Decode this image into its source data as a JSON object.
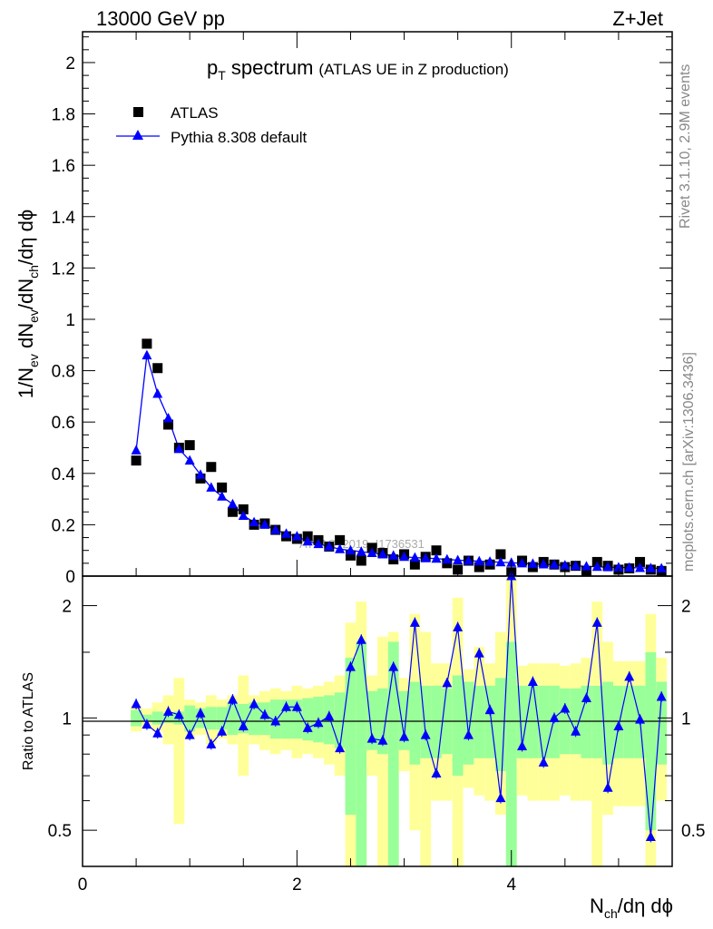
{
  "header": {
    "left": "13000 GeV pp",
    "right": "Z+Jet"
  },
  "side_labels": {
    "rivet": "Rivet 3.1.10,  2.9M events",
    "mcplots": "mcplots.cern.ch [arXiv:1306.3436]"
  },
  "chart_data": [
    {
      "type": "scatter",
      "panel": "main",
      "title_main": "p",
      "title_sub": "T",
      "title_rest": " spectrum",
      "title_note": "(ATLAS UE in Z production)",
      "ylabel": "1/N_ev dN_ev/dN_ch/dη dϕ",
      "ylim": [
        0,
        2.12
      ],
      "yticks": [
        "0",
        "0.2",
        "0.4",
        "0.6",
        "0.8",
        "1",
        "1.2",
        "1.4",
        "1.6",
        "1.8",
        "2"
      ],
      "xlim": [
        0,
        5.5
      ],
      "watermark": "ATLAS_2019_I1736531",
      "legend_position": "top-left",
      "x": [
        0.5,
        0.6,
        0.7,
        0.8,
        0.9,
        1.0,
        1.1,
        1.2,
        1.3,
        1.4,
        1.5,
        1.6,
        1.7,
        1.8,
        1.9,
        2.0,
        2.1,
        2.2,
        2.3,
        2.4,
        2.5,
        2.6,
        2.7,
        2.8,
        2.9,
        3.0,
        3.1,
        3.2,
        3.3,
        3.4,
        3.5,
        3.6,
        3.7,
        3.8,
        3.9,
        4.0,
        4.1,
        4.2,
        4.3,
        4.4,
        4.5,
        4.6,
        4.7,
        4.8,
        4.9,
        5.0,
        5.1,
        5.2,
        5.3,
        5.4
      ],
      "series": [
        {
          "name": "ATLAS",
          "color": "#000000",
          "marker": "square",
          "values": [
            0.45,
            0.905,
            0.81,
            0.59,
            0.5,
            0.51,
            0.38,
            0.425,
            0.345,
            0.25,
            0.26,
            0.2,
            0.205,
            0.18,
            0.155,
            0.145,
            0.155,
            0.14,
            0.115,
            0.14,
            0.08,
            0.06,
            0.11,
            0.09,
            0.065,
            0.085,
            0.045,
            0.075,
            0.1,
            0.05,
            0.025,
            0.06,
            0.035,
            0.045,
            0.085,
            0.015,
            0.06,
            0.035,
            0.055,
            0.045,
            0.035,
            0.04,
            0.02,
            0.055,
            0.04,
            0.025,
            0.03,
            0.055,
            0.025,
            0.02
          ]
        },
        {
          "name": "Pythia 8.308 default",
          "color": "#0000ff",
          "marker": "triangle",
          "values": [
            0.49,
            0.86,
            0.71,
            0.615,
            0.495,
            0.45,
            0.395,
            0.345,
            0.31,
            0.28,
            0.235,
            0.21,
            0.2,
            0.18,
            0.165,
            0.155,
            0.135,
            0.125,
            0.115,
            0.105,
            0.1,
            0.095,
            0.09,
            0.085,
            0.08,
            0.075,
            0.072,
            0.07,
            0.068,
            0.065,
            0.062,
            0.06,
            0.058,
            0.056,
            0.054,
            0.052,
            0.05,
            0.048,
            0.046,
            0.044,
            0.042,
            0.04,
            0.038,
            0.036,
            0.035,
            0.034,
            0.033,
            0.032,
            0.031,
            0.03
          ]
        }
      ]
    },
    {
      "type": "line",
      "panel": "ratio",
      "ylabel": "Ratio to ATLAS",
      "ylim": [
        0.4,
        2.4
      ],
      "yticks": [
        "0.5",
        "1",
        "2"
      ],
      "xlim": [
        0,
        5.5
      ],
      "xticks": [
        "0",
        "2",
        "4"
      ],
      "xlabel": "N_ch/dη dϕ",
      "x": [
        0.5,
        0.6,
        0.7,
        0.8,
        0.9,
        1.0,
        1.1,
        1.2,
        1.3,
        1.4,
        1.5,
        1.6,
        1.7,
        1.8,
        1.9,
        2.0,
        2.1,
        2.2,
        2.3,
        2.4,
        2.5,
        2.6,
        2.7,
        2.8,
        2.9,
        3.0,
        3.1,
        3.2,
        3.3,
        3.4,
        3.5,
        3.6,
        3.7,
        3.8,
        3.9,
        4.0,
        4.1,
        4.2,
        4.3,
        4.4,
        4.5,
        4.6,
        4.7,
        4.8,
        4.9,
        5.0,
        5.1,
        5.2,
        5.3,
        5.4
      ],
      "ratio": [
        1.09,
        0.96,
        0.91,
        1.04,
        1.02,
        0.9,
        1.03,
        0.85,
        0.92,
        1.12,
        0.95,
        1.09,
        1.02,
        0.98,
        1.07,
        1.07,
        0.94,
        0.97,
        1.01,
        0.83,
        1.37,
        1.62,
        0.88,
        0.87,
        1.37,
        0.89,
        1.8,
        0.9,
        0.71,
        1.24,
        1.75,
        0.9,
        1.49,
        1.05,
        0.61,
        2.4,
        0.84,
        1.25,
        0.76,
        1.0,
        1.06,
        0.92,
        1.13,
        1.8,
        0.65,
        0.95,
        1.29,
        0.99,
        0.48,
        1.14
      ],
      "band_stat_lo": [
        0.95,
        0.98,
        0.96,
        0.97,
        0.96,
        0.92,
        0.94,
        0.93,
        0.93,
        0.9,
        0.91,
        0.9,
        0.9,
        0.88,
        0.88,
        0.88,
        0.87,
        0.86,
        0.85,
        0.83,
        0.55,
        0.4,
        0.82,
        0.8,
        0.4,
        0.82,
        0.75,
        0.78,
        0.78,
        0.8,
        0.7,
        0.75,
        0.78,
        0.78,
        0.72,
        0.4,
        0.78,
        0.78,
        0.78,
        0.78,
        0.8,
        0.8,
        0.78,
        0.78,
        0.75,
        0.78,
        0.78,
        0.78,
        0.5,
        0.75
      ],
      "band_stat_hi": [
        1.05,
        1.02,
        1.04,
        1.03,
        1.04,
        1.08,
        1.06,
        1.07,
        1.07,
        1.1,
        1.09,
        1.1,
        1.1,
        1.12,
        1.12,
        1.12,
        1.13,
        1.14,
        1.15,
        1.17,
        1.45,
        1.6,
        1.18,
        1.2,
        1.6,
        1.18,
        1.25,
        1.22,
        1.22,
        1.2,
        1.3,
        1.25,
        1.22,
        1.22,
        1.28,
        1.6,
        1.22,
        1.22,
        1.22,
        1.22,
        1.2,
        1.2,
        1.22,
        1.22,
        1.25,
        1.22,
        1.22,
        1.22,
        1.5,
        1.25
      ],
      "band_sys_lo": [
        0.92,
        0.94,
        0.92,
        0.85,
        0.52,
        0.88,
        0.9,
        0.85,
        0.88,
        0.85,
        0.7,
        0.85,
        0.82,
        0.8,
        0.82,
        0.78,
        0.8,
        0.78,
        0.75,
        0.7,
        0.4,
        0.4,
        0.7,
        0.4,
        0.4,
        0.72,
        0.5,
        0.4,
        0.6,
        0.6,
        0.4,
        0.65,
        0.62,
        0.6,
        0.55,
        0.4,
        0.62,
        0.6,
        0.6,
        0.6,
        0.62,
        0.6,
        0.6,
        0.4,
        0.55,
        0.58,
        0.58,
        0.58,
        0.4,
        0.6
      ],
      "band_sys_hi": [
        1.08,
        1.06,
        1.1,
        1.15,
        1.28,
        1.12,
        1.1,
        1.15,
        1.12,
        1.15,
        1.3,
        1.15,
        1.18,
        1.2,
        1.18,
        1.22,
        1.2,
        1.22,
        1.25,
        1.3,
        1.8,
        2.05,
        1.3,
        1.65,
        1.7,
        1.28,
        1.9,
        1.7,
        1.4,
        1.4,
        2.1,
        1.35,
        1.55,
        1.4,
        1.7,
        2.4,
        1.38,
        1.4,
        1.4,
        1.4,
        1.38,
        1.4,
        1.45,
        2.05,
        1.6,
        1.42,
        1.42,
        1.42,
        1.9,
        1.45
      ]
    }
  ]
}
